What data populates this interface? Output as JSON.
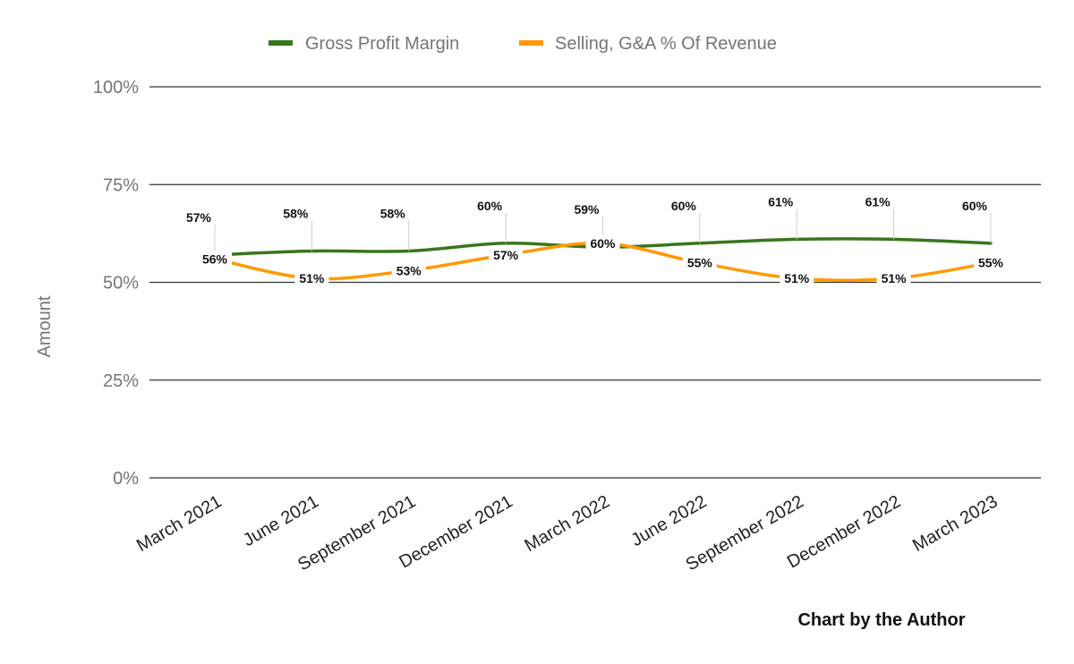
{
  "chart_data": {
    "type": "line",
    "title": "",
    "xlabel": "",
    "ylabel": "Amount",
    "ylim": [
      0,
      100
    ],
    "yticks": [
      "0%",
      "25%",
      "50%",
      "75%",
      "100%"
    ],
    "ytick_values": [
      0,
      25,
      50,
      75,
      100
    ],
    "grid": true,
    "legend_position": "top",
    "categories": [
      "March 2021",
      "June 2021",
      "September 2021",
      "December 2021",
      "March 2022",
      "June 2022",
      "September 2022",
      "December 2022",
      "March 2023"
    ],
    "series": [
      {
        "name": "Gross Profit Margin",
        "color": "#38761d",
        "values": [
          57,
          58,
          58,
          60,
          59,
          60,
          61,
          61,
          60
        ],
        "labels": [
          "57%",
          "58%",
          "58%",
          "60%",
          "59%",
          "60%",
          "61%",
          "61%",
          "60%"
        ]
      },
      {
        "name": "Selling, G&A % Of Revenue",
        "color": "#ff9900",
        "values": [
          56,
          51,
          53,
          57,
          60,
          55,
          51,
          51,
          55
        ],
        "labels": [
          "56%",
          "51%",
          "53%",
          "57%",
          "60%",
          "55%",
          "51%",
          "51%",
          "55%"
        ]
      }
    ],
    "smooth": true
  },
  "footnote": "Chart by the Author"
}
